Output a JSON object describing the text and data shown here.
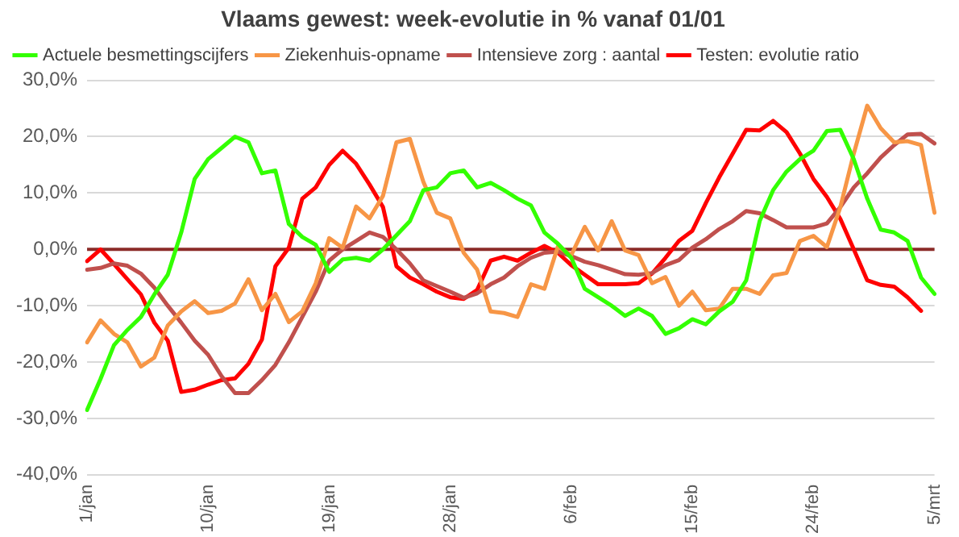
{
  "chart_data": {
    "type": "line",
    "title": "Vlaams gewest: week-evolutie in % vanaf 01/01",
    "categories": [
      "1/jan",
      null,
      null,
      null,
      null,
      null,
      null,
      null,
      null,
      "10/jan",
      null,
      null,
      null,
      null,
      null,
      null,
      null,
      null,
      "19/jan",
      null,
      null,
      null,
      null,
      null,
      null,
      null,
      null,
      "28/jan",
      null,
      null,
      null,
      null,
      null,
      null,
      null,
      null,
      "6/feb",
      null,
      null,
      null,
      null,
      null,
      null,
      null,
      null,
      "15/feb",
      null,
      null,
      null,
      null,
      null,
      null,
      null,
      null,
      "24/feb",
      null,
      null,
      null,
      null,
      null,
      null,
      null,
      null,
      "5/mrt"
    ],
    "series": [
      {
        "name": "Actuele besmettingscijfers",
        "color": "#33ff00",
        "values": [
          -28.5,
          -23,
          -17,
          -14.3,
          -12,
          -8,
          -4.5,
          3,
          12.5,
          16,
          18,
          20,
          19,
          13.5,
          14,
          4.5,
          2.2,
          0.8,
          -4,
          -1.8,
          -1.5,
          -2,
          0,
          2.5,
          5,
          10.5,
          11,
          13.5,
          14,
          11,
          11.8,
          10.5,
          9,
          7.8,
          3,
          1,
          -1.5,
          -7,
          -8.5,
          -10,
          -11.8,
          -10.5,
          -11.8,
          -15,
          -14,
          -12.4,
          -13.3,
          -11,
          -9.3,
          -5.5,
          5,
          10.5,
          13.8,
          16,
          17.5,
          21,
          21.2,
          16,
          9,
          3.5,
          3,
          1.5,
          -5,
          -7.9
        ]
      },
      {
        "name": "Ziekenhuis-opname",
        "color": "#f79646",
        "values": [
          -16.5,
          -12.6,
          -15,
          -16.5,
          -20.8,
          -19.2,
          -13.5,
          -11,
          -9.2,
          -11.3,
          -10.9,
          -9.6,
          -5.3,
          -10.8,
          -7.9,
          -12.9,
          -11,
          -6,
          2,
          0.3,
          7.6,
          5.5,
          9.5,
          19,
          19.6,
          12,
          6.5,
          5.5,
          -0.6,
          -3.6,
          -11,
          -11.3,
          -12,
          -6.2,
          -7,
          0.5,
          -1,
          4,
          -0.2,
          5,
          -0.2,
          -1,
          -6,
          -4.9,
          -10,
          -7.5,
          -10.8,
          -10.5,
          -7,
          -7,
          -7.9,
          -4.6,
          -4.2,
          1.5,
          2.4,
          0.4,
          7.5,
          17,
          25.5,
          21.5,
          19,
          19.2,
          18.5,
          6.5
        ]
      },
      {
        "name": "Intensieve zorg : aantal",
        "color": "#c0504d",
        "values": [
          -3.6,
          -3.3,
          -2.5,
          -2.9,
          -4.3,
          -6.8,
          -10,
          -13,
          -16.2,
          -18.7,
          -22.5,
          -25.5,
          -25.5,
          -23.2,
          -20.5,
          -16.5,
          -12,
          -7.5,
          -2,
          0,
          1.5,
          3,
          2.2,
          0,
          -2.5,
          -5.5,
          -6.5,
          -7.5,
          -8.6,
          -7.8,
          -6.2,
          -5,
          -3,
          -1.5,
          -0.6,
          -0.4,
          -1.2,
          -2.2,
          -2.8,
          -3.6,
          -4.4,
          -4.5,
          -4.2,
          -2.8,
          -1.9,
          0.3,
          1.8,
          3.6,
          5,
          6.8,
          6.4,
          5.2,
          3.9,
          3.9,
          3.9,
          4.6,
          7.5,
          11,
          13.5,
          16.3,
          18.5,
          20.4,
          20.5,
          18.8
        ]
      },
      {
        "name": "Testen: evolutie ratio",
        "color": "#ff0000",
        "values": [
          -2.1,
          0,
          -2.6,
          -5.3,
          -8,
          -13,
          -16.2,
          -25.3,
          -24.9,
          -24,
          -23.2,
          -22.9,
          -20.3,
          -16,
          -3,
          0.3,
          9,
          11,
          15,
          17.5,
          15.2,
          11.5,
          7.5,
          -3,
          -5,
          -6.2,
          -7.5,
          -8.5,
          -8.8,
          -7.2,
          -2,
          -1.3,
          -2,
          -0.6,
          0.6,
          -0.6,
          -2.8,
          -4.5,
          -6.2,
          -6.2,
          -6.2,
          -6,
          -4.3,
          -1.5,
          1.5,
          3.3,
          8.2,
          12.8,
          17,
          21.2,
          21.1,
          22.8,
          20.8,
          17,
          12.5,
          9.3,
          5.4,
          0,
          -5.5,
          -6.3,
          -6.6,
          -8.5,
          -10.9,
          null
        ]
      }
    ],
    "ylim": [
      -40,
      30
    ],
    "yticks": [
      {
        "value": -40,
        "label": "-40,0%"
      },
      {
        "value": -30,
        "label": "-30,0%"
      },
      {
        "value": -20,
        "label": "-20,0%"
      },
      {
        "value": -10,
        "label": "-10,0%"
      },
      {
        "value": 0,
        "label": "0,0%"
      },
      {
        "value": 10,
        "label": "10,0%"
      },
      {
        "value": 20,
        "label": "20,0%"
      },
      {
        "value": 30,
        "label": "30,0%"
      }
    ],
    "ref_lines": [
      {
        "axis": "y",
        "value": 0,
        "color": "#8b2b28"
      }
    ],
    "grid": "y",
    "legend": "top left",
    "marker": "none",
    "line_style": "solid"
  }
}
